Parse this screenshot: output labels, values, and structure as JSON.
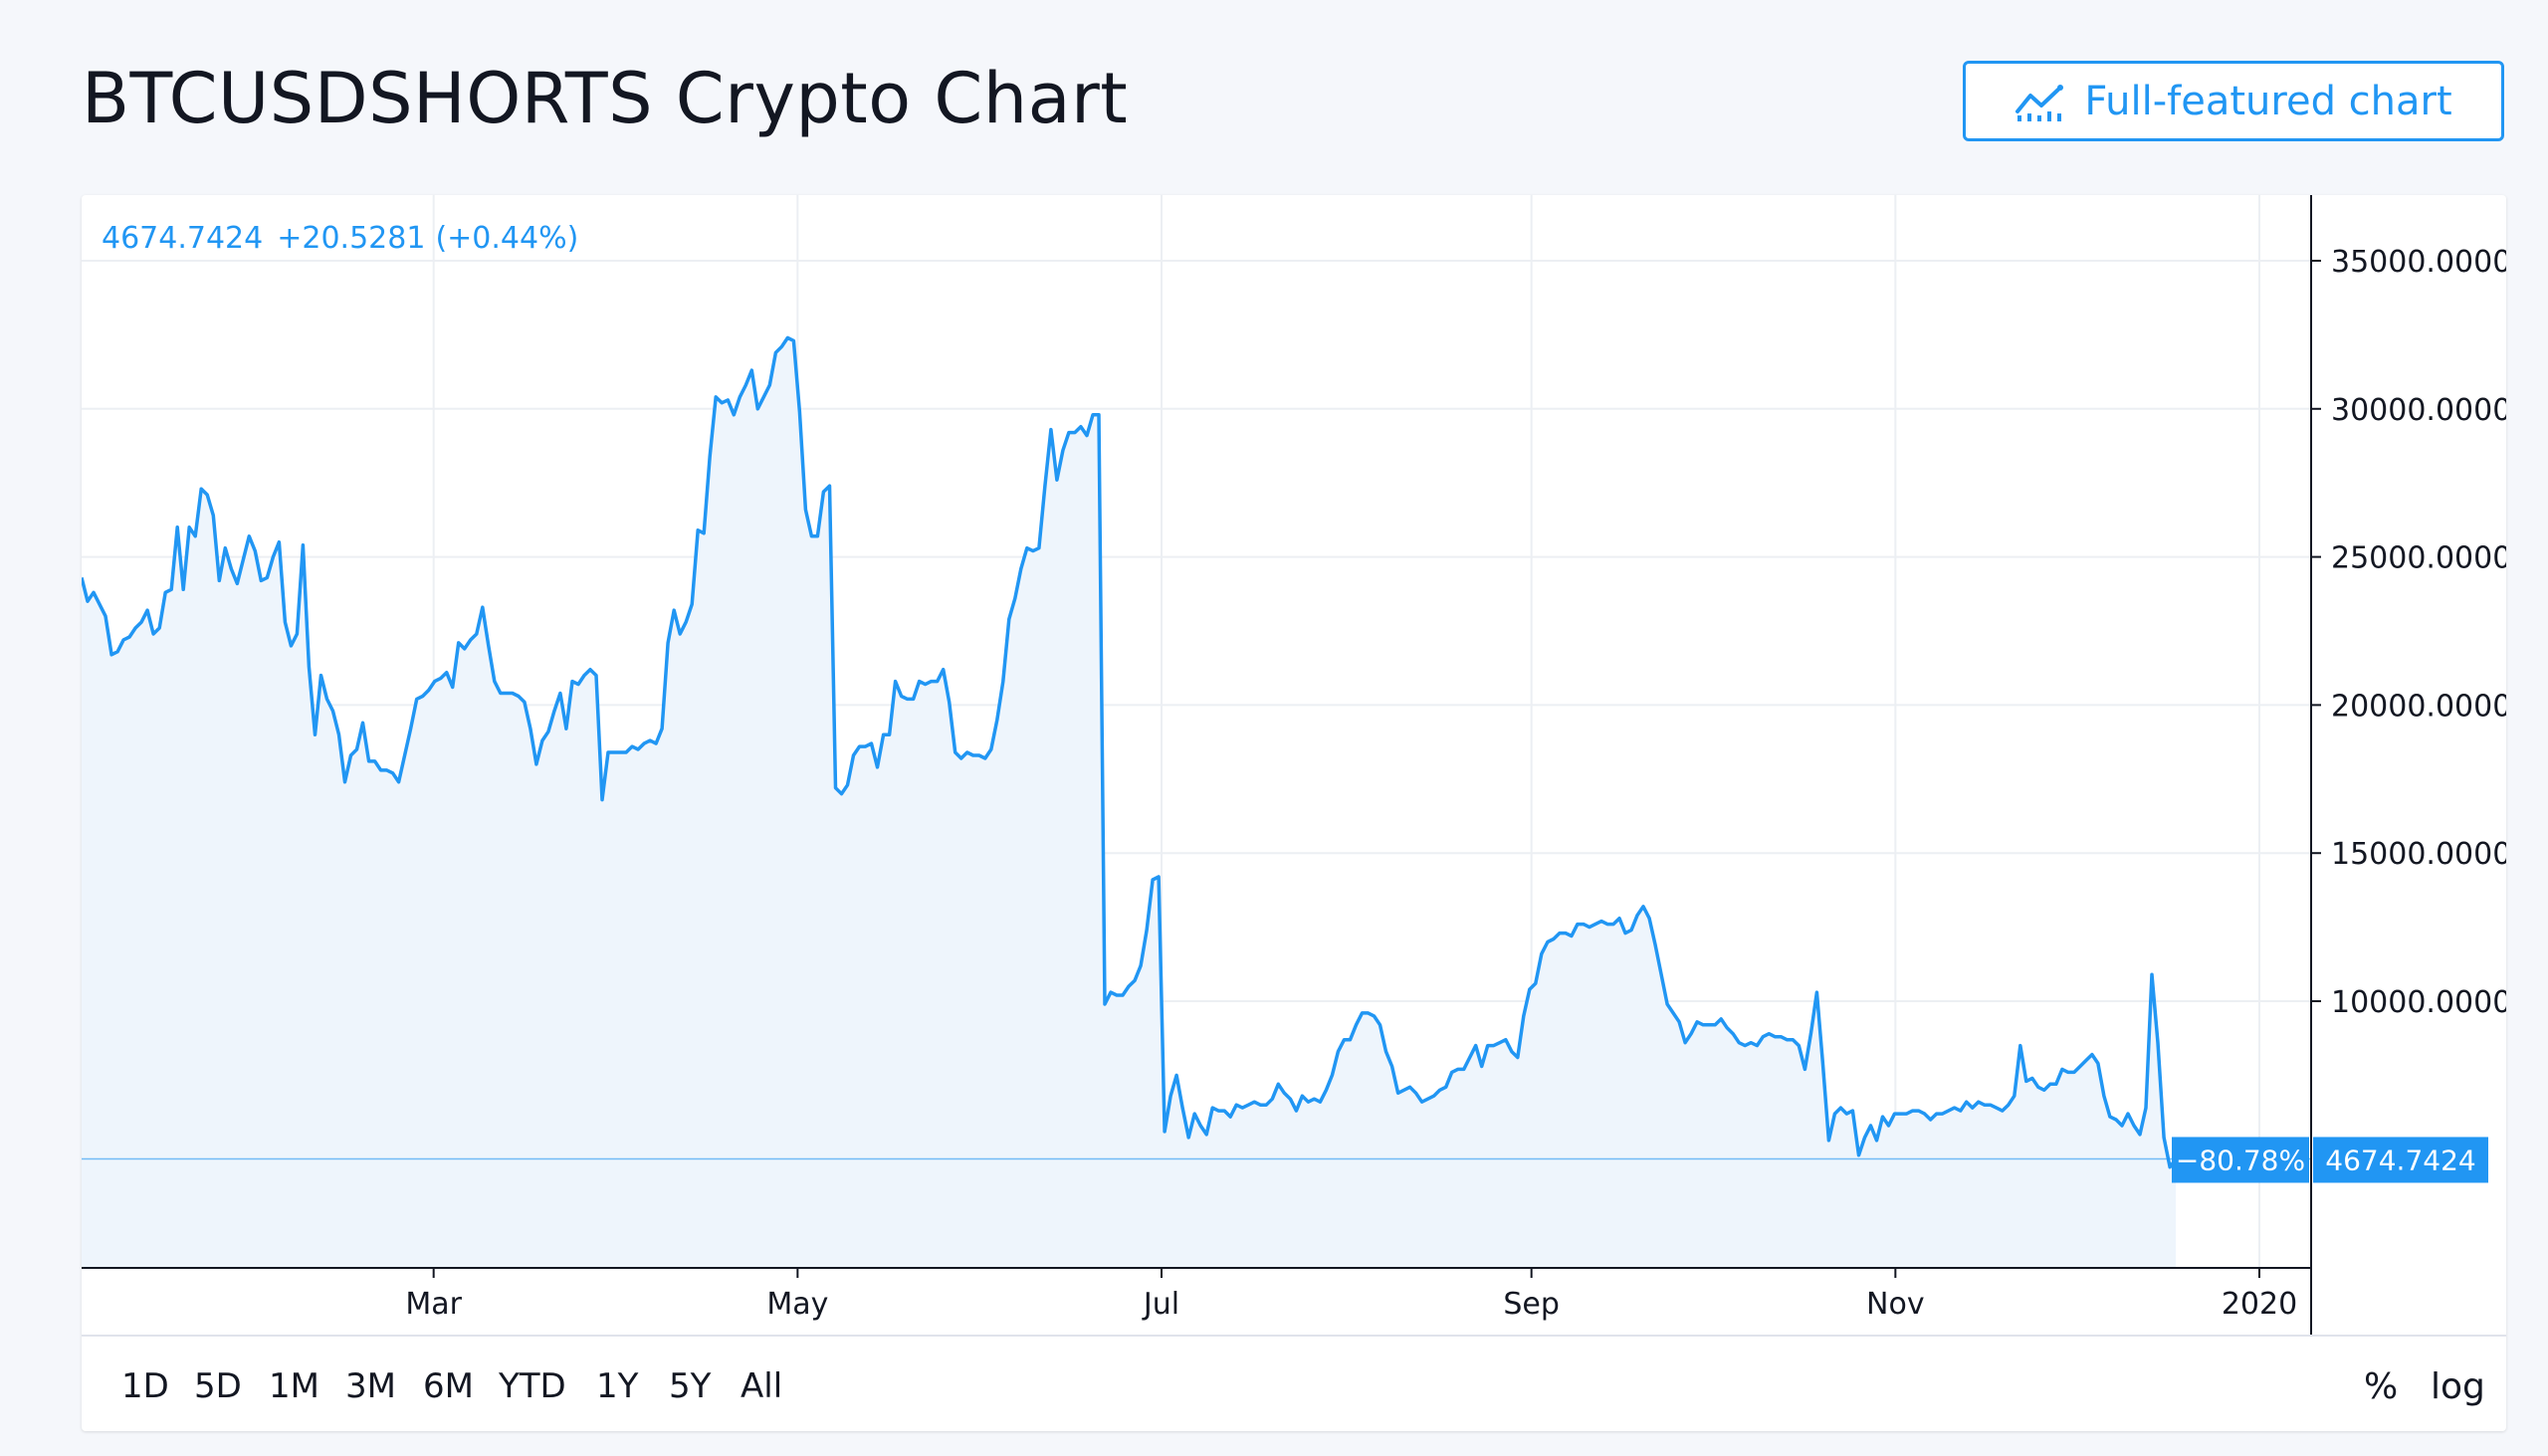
{
  "page": {
    "title": "BTCUSDSHORTS Crypto Chart",
    "full_chart_button": "Full-featured chart",
    "full_chart_icon": "chart-line-icon"
  },
  "quote": {
    "price": "4674.7424",
    "change": "+20.5281",
    "change_pct": "(+0.44%)"
  },
  "last_labels": {
    "pct": "−80.78%",
    "price": "4674.7424"
  },
  "ranges": [
    "1D",
    "5D",
    "1M",
    "3M",
    "6M",
    "YTD",
    "1Y",
    "5Y",
    "All"
  ],
  "scale_controls": {
    "percent": "%",
    "log": "log"
  },
  "colors": {
    "line": "#2196f3",
    "fill": "#eef5fc",
    "text": "#131722",
    "grid": "#eceff3"
  },
  "chart_data": {
    "type": "area",
    "title": "BTCUSDSHORTS Crypto Chart",
    "xlabel": "",
    "ylabel": "",
    "x_start": "2019-01-01",
    "x_end": "2019-12-18",
    "xlim": [
      "2019-01-01",
      "2020-01-01"
    ],
    "ylim": [
      0,
      37000
    ],
    "yticks": [
      10000,
      15000,
      20000,
      25000,
      30000,
      35000
    ],
    "ytick_labels": [
      "10000.0000",
      "15000.0000",
      "20000.0000",
      "25000.0000",
      "30000.0000",
      "35000.0000"
    ],
    "xticks": [
      {
        "label": "Mar",
        "date": "2019-03-01"
      },
      {
        "label": "May",
        "date": "2019-05-01"
      },
      {
        "label": "Jul",
        "date": "2019-07-01"
      },
      {
        "label": "Sep",
        "date": "2019-09-01"
      },
      {
        "label": "Nov",
        "date": "2019-11-01"
      },
      {
        "label": "2020",
        "date": "2020-01-01"
      }
    ],
    "grid": true,
    "series": [
      {
        "values": [
          24300,
          23500,
          23800,
          23400,
          23000,
          21700,
          21800,
          22200,
          22300,
          22600,
          22800,
          23200,
          22400,
          22600,
          23800,
          23900,
          26000,
          23900,
          26000,
          25700,
          27300,
          27100,
          26400,
          24200,
          25300,
          24600,
          24100,
          24900,
          25700,
          25200,
          24200,
          24300,
          25000,
          25500,
          22800,
          22000,
          22400,
          25400,
          21300,
          19000,
          21000,
          20200,
          19800,
          19000,
          17400,
          18300,
          18500,
          19400,
          18100,
          18100,
          17800,
          17800,
          17700,
          17400,
          18300,
          19200,
          20200,
          20300,
          20500,
          20800,
          20900,
          21100,
          20600,
          22100,
          21900,
          22200,
          22400,
          23300,
          22000,
          20800,
          20400,
          20400,
          20400,
          20300,
          20100,
          19200,
          18000,
          18800,
          19100,
          19800,
          20400,
          19200,
          20800,
          20700,
          21000,
          21200,
          21000,
          16800,
          18400,
          18400,
          18400,
          18400,
          18600,
          18500,
          18700,
          18800,
          18700,
          19200,
          22100,
          23200,
          22400,
          22800,
          23400,
          25900,
          25800,
          28400,
          30400,
          30200,
          30300,
          29800,
          30400,
          30800,
          31300,
          30000,
          30400,
          30800,
          31900,
          32100,
          32400,
          32300,
          29900,
          26600,
          25700,
          25700,
          27200,
          27400,
          17200,
          17000,
          17300,
          18300,
          18600,
          18600,
          18700,
          17900,
          19000,
          19000,
          20800,
          20300,
          20200,
          20200,
          20800,
          20700,
          20800,
          20800,
          21200,
          20100,
          18400,
          18200,
          18400,
          18300,
          18300,
          18200,
          18500,
          19500,
          20800,
          22900,
          23600,
          24600,
          25300,
          25200,
          25300,
          27400,
          29300,
          27600,
          28600,
          29200,
          29200,
          29400,
          29100,
          29800,
          29800,
          9900,
          10300,
          10200,
          10200,
          10500,
          10700,
          11200,
          12400,
          14100,
          14200,
          5600,
          6800,
          7500,
          6400,
          5400,
          6200,
          5800,
          5500,
          6400,
          6300,
          6300,
          6100,
          6500,
          6400,
          6500,
          6600,
          6500,
          6500,
          6700,
          7200,
          6900,
          6700,
          6300,
          6800,
          6600,
          6700,
          6600,
          7000,
          7500,
          8300,
          8700,
          8700,
          9200,
          9600,
          9600,
          9500,
          9200,
          8300,
          7800,
          6900,
          7000,
          7100,
          6900,
          6600,
          6700,
          6800,
          7000,
          7100,
          7600,
          7700,
          7700,
          8100,
          8500,
          7800,
          8500,
          8500,
          8600,
          8700,
          8300,
          8100,
          9500,
          10400,
          10600,
          11600,
          12000,
          12100,
          12300,
          12300,
          12200,
          12600,
          12600,
          12500,
          12600,
          12700,
          12600,
          12600,
          12800,
          12300,
          12400,
          12900,
          13200,
          12800,
          11900,
          10900,
          9900,
          9600,
          9300,
          8600,
          8900,
          9300,
          9200,
          9200,
          9200,
          9400,
          9100,
          8900,
          8600,
          8500,
          8600,
          8500,
          8800,
          8900,
          8800,
          8800,
          8700,
          8700,
          8500,
          7700,
          8900,
          10300,
          7900,
          5300,
          6200,
          6400,
          6200,
          6300,
          4800,
          5400,
          5800,
          5300,
          6100,
          5800,
          6200,
          6200,
          6200,
          6300,
          6300,
          6200,
          6000,
          6200,
          6200,
          6300,
          6400,
          6300,
          6600,
          6400,
          6600,
          6500,
          6500,
          6400,
          6300,
          6500,
          6800,
          8500,
          7300,
          7400,
          7100,
          7000,
          7200,
          7200,
          7700,
          7600,
          7600,
          7800,
          8000,
          8200,
          7900,
          6800,
          6100,
          6000,
          5800,
          6200,
          5800,
          5500,
          6400,
          10900,
          8600,
          5400,
          4400,
          4674.7424
        ]
      }
    ]
  }
}
